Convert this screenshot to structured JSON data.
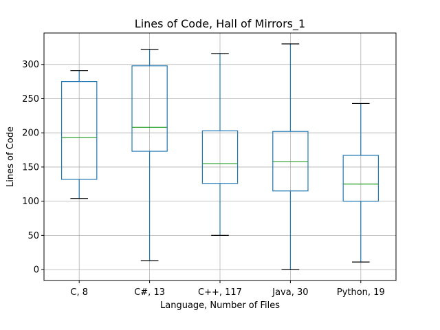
{
  "chart_data": {
    "type": "boxplot",
    "title": "Lines of Code, Hall of Mirrors_1",
    "xlabel": "Language, Number of Files",
    "ylabel": "Lines of Code",
    "categories": [
      "C, 8",
      "C#, 13",
      "C++, 117",
      "Java, 30",
      "Python, 19"
    ],
    "boxes": [
      {
        "whisker_low": 104,
        "q1": 132,
        "median": 193,
        "q3": 275,
        "whisker_high": 291
      },
      {
        "whisker_low": 13,
        "q1": 173,
        "median": 208,
        "q3": 298,
        "whisker_high": 322
      },
      {
        "whisker_low": 50,
        "q1": 126,
        "median": 155,
        "q3": 203,
        "whisker_high": 316
      },
      {
        "whisker_low": 0,
        "q1": 115,
        "median": 158,
        "q3": 202,
        "whisker_high": 330
      },
      {
        "whisker_low": 11,
        "q1": 100,
        "median": 125,
        "q3": 167,
        "whisker_high": 243
      }
    ],
    "yticks": [
      0,
      50,
      100,
      150,
      200,
      250,
      300
    ],
    "ylim": [
      -16,
      346
    ],
    "grid": true,
    "colors": {
      "box": "#1f77b4",
      "median": "#2ca02c",
      "grid": "#b0b0b0",
      "axis": "#000000"
    }
  }
}
